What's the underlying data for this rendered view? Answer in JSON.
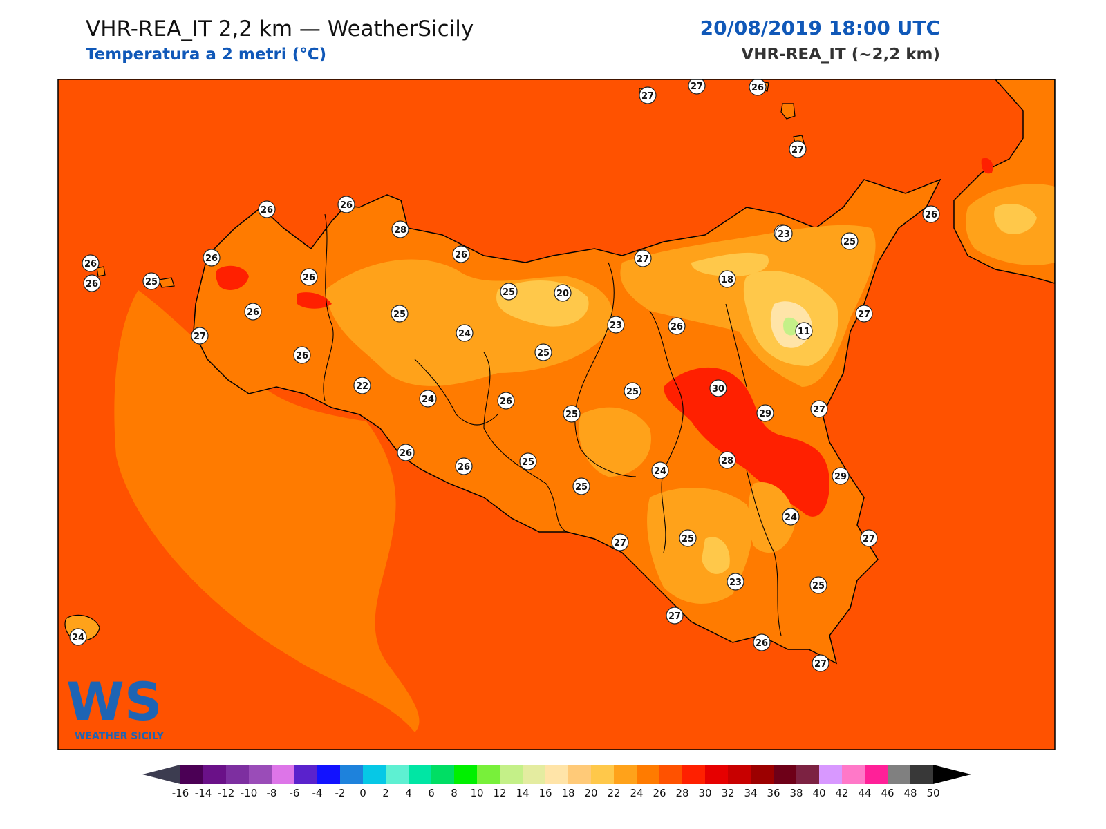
{
  "header": {
    "title": "VHR-REA_IT 2,2 km — WeatherSicily",
    "subtitle": "Temperatura a 2 metri (°C)",
    "datetime": "20/08/2019 18:00 UTC",
    "model": "VHR-REA_IT (~2,2 km)"
  },
  "logo": {
    "letters": "WS",
    "name": "WEATHER SICILY"
  },
  "colors": {
    "sea": "#ff5200",
    "land_base": "#ff7b00",
    "warm_zone": "#ffa21a",
    "cool_zone": "#ffc84a",
    "hot_zone": "#ff2a00"
  },
  "stations": [
    {
      "name": "s1",
      "value": "27"
    },
    {
      "name": "s2",
      "value": "27"
    },
    {
      "name": "s3",
      "value": "26"
    },
    {
      "name": "s4",
      "value": "27"
    },
    {
      "name": "s5",
      "value": "26"
    },
    {
      "name": "s6",
      "value": "26"
    },
    {
      "name": "s7",
      "value": "28"
    },
    {
      "name": "s8",
      "value": "26"
    },
    {
      "name": "s9",
      "value": "26"
    },
    {
      "name": "s10",
      "value": "26"
    },
    {
      "name": "s11",
      "value": "25"
    },
    {
      "name": "s12",
      "value": "26"
    },
    {
      "name": "s13",
      "value": "27"
    },
    {
      "name": "s14",
      "value": "26"
    },
    {
      "name": "s15",
      "value": "26"
    },
    {
      "name": "s16",
      "value": "25"
    },
    {
      "name": "s17",
      "value": "22"
    },
    {
      "name": "s18",
      "value": "24"
    },
    {
      "name": "s19",
      "value": "24"
    },
    {
      "name": "s20",
      "value": "25"
    },
    {
      "name": "s21",
      "value": "20"
    },
    {
      "name": "s22",
      "value": "27"
    },
    {
      "name": "s23",
      "value": "23"
    },
    {
      "name": "s24",
      "value": "25"
    },
    {
      "name": "s25",
      "value": "26"
    },
    {
      "name": "s26",
      "value": "26"
    },
    {
      "name": "s27",
      "value": "25"
    },
    {
      "name": "s28",
      "value": "18"
    },
    {
      "name": "s29",
      "value": "23"
    },
    {
      "name": "s30",
      "value": "25"
    },
    {
      "name": "s31",
      "value": "26"
    },
    {
      "name": "s32",
      "value": "11"
    },
    {
      "name": "s33",
      "value": "27"
    },
    {
      "name": "s34",
      "value": "30"
    },
    {
      "name": "s35",
      "value": "29"
    },
    {
      "name": "s36",
      "value": "27"
    },
    {
      "name": "s37",
      "value": "25"
    },
    {
      "name": "s38",
      "value": "25"
    },
    {
      "name": "s39",
      "value": "26"
    },
    {
      "name": "s40",
      "value": "26"
    },
    {
      "name": "s41",
      "value": "25"
    },
    {
      "name": "s42",
      "value": "25"
    },
    {
      "name": "s43",
      "value": "24"
    },
    {
      "name": "s44",
      "value": "28"
    },
    {
      "name": "s45",
      "value": "29"
    },
    {
      "name": "s46",
      "value": "26"
    },
    {
      "name": "s47",
      "value": "27"
    },
    {
      "name": "s48",
      "value": "25"
    },
    {
      "name": "s49",
      "value": "24"
    },
    {
      "name": "s50",
      "value": "27"
    },
    {
      "name": "s51",
      "value": "23"
    },
    {
      "name": "s52",
      "value": "25"
    },
    {
      "name": "s53",
      "value": "27"
    },
    {
      "name": "s54",
      "value": "26"
    },
    {
      "name": "s55",
      "value": "27"
    },
    {
      "name": "s56",
      "value": "24"
    }
  ],
  "colorbar": {
    "ticks": [
      "-16",
      "-14",
      "-12",
      "-10",
      "-8",
      "-6",
      "-4",
      "-2",
      "0",
      "2",
      "4",
      "6",
      "8",
      "10",
      "12",
      "14",
      "16",
      "18",
      "20",
      "22",
      "24",
      "26",
      "28",
      "30",
      "32",
      "34",
      "36",
      "38",
      "40",
      "42",
      "44",
      "46",
      "48",
      "50"
    ],
    "colors": [
      "#4b0055",
      "#6a1188",
      "#7d2fa0",
      "#9a4cb8",
      "#dd75e8",
      "#5a22cc",
      "#1212ff",
      "#1e82dc",
      "#06c8e6",
      "#5ef0d2",
      "#00e6a4",
      "#00de64",
      "#00f000",
      "#78f03a",
      "#c4f088",
      "#e4eca0",
      "#ffe4a8",
      "#ffca78",
      "#ffc84a",
      "#ffa21a",
      "#ff7b00",
      "#ff5200",
      "#ff2000",
      "#e60000",
      "#c80000",
      "#9c0000",
      "#6e0018",
      "#7c2242",
      "#d898ff",
      "#ff78c8",
      "#ff2098",
      "#808080",
      "#383838"
    ],
    "under_color": "#3c3c50",
    "over_color": "#000000"
  }
}
